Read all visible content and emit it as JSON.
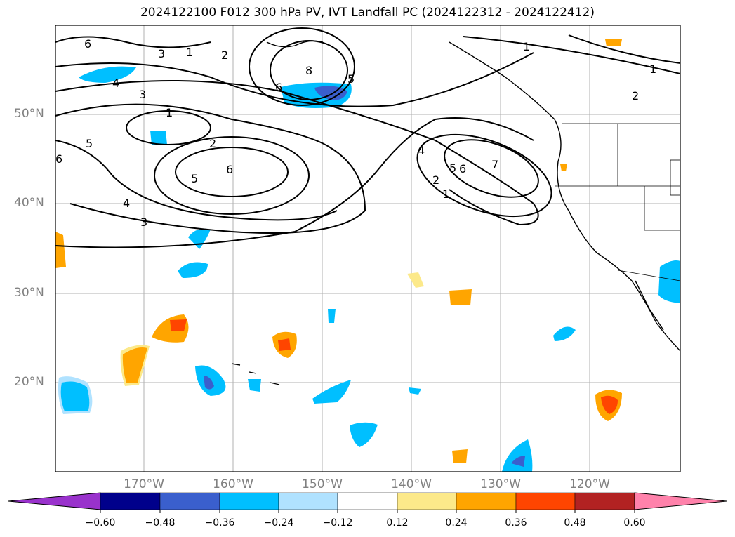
{
  "title": "2024122100 F012 300 hPa PV, IVT Landfall PC (2024122312 - 2024122412)",
  "lat_labels": [
    "50°N",
    "40°N",
    "30°N",
    "20°N"
  ],
  "lon_labels": [
    "170°W",
    "160°W",
    "150°W",
    "140°W",
    "130°W",
    "120°W"
  ],
  "colorbar": {
    "colors": [
      "#9932cc",
      "#00008b",
      "#3a5fcd",
      "#00bfff",
      "#b0e2ff",
      "#ffffff",
      "#fce98a",
      "#ffa500",
      "#ff4500",
      "#b22222",
      "#ff82ab"
    ],
    "ticks": [
      "−0.60",
      "−0.48",
      "−0.36",
      "−0.24",
      "−0.12",
      "0.12",
      "0.24",
      "0.36",
      "0.48",
      "0.60"
    ]
  },
  "contour_labels": [
    "1",
    "2",
    "3",
    "4",
    "5",
    "6",
    "7",
    "8"
  ]
}
